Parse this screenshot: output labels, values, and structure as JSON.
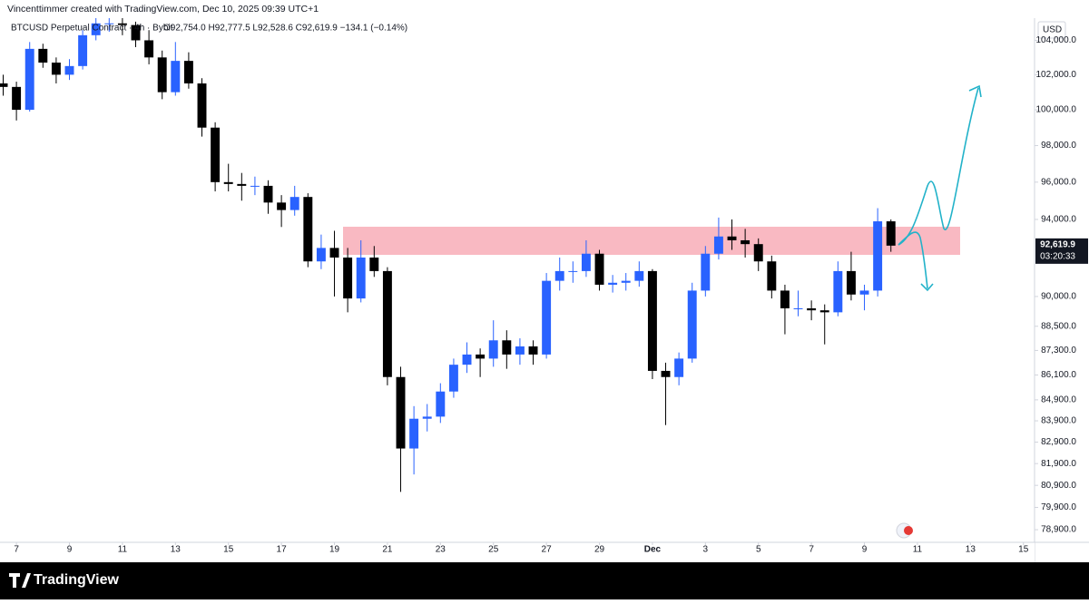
{
  "chart_data": {
    "type": "candlestick",
    "title": "Vincenttimmer created with TradingView.com, Dec 10, 2025 09:39 UTC+1",
    "symbol": "BTCUSD Perpetual Contract · 4h · Bybit",
    "ohlc_text": "O92,754.0 H92,777.5 L92,528.6 C92,619.9 −134.1 (−0.14%)",
    "currency": "USD",
    "last_price": {
      "value": 92619.9,
      "label": "92,619.9"
    },
    "countdown": "03:20:33",
    "brand": "TradingView",
    "log_scale": true,
    "grid": false,
    "up_color": "#2962ff",
    "down_color": "#000000",
    "xlim": [
      0.38,
      39.42
    ],
    "ylim": [
      78340,
      105310
    ],
    "xticks": [
      {
        "value": 1,
        "label": "7"
      },
      {
        "value": 3,
        "label": "9"
      },
      {
        "value": 5,
        "label": "11"
      },
      {
        "value": 7,
        "label": "13"
      },
      {
        "value": 9,
        "label": "15"
      },
      {
        "value": 11,
        "label": "17"
      },
      {
        "value": 13,
        "label": "19"
      },
      {
        "value": 15,
        "label": "21"
      },
      {
        "value": 17,
        "label": "23"
      },
      {
        "value": 19,
        "label": "25"
      },
      {
        "value": 21,
        "label": "27"
      },
      {
        "value": 23,
        "label": "29"
      },
      {
        "value": 25,
        "label": "Dec"
      },
      {
        "value": 27,
        "label": "3"
      },
      {
        "value": 29,
        "label": "5"
      },
      {
        "value": 31,
        "label": "7"
      },
      {
        "value": 33,
        "label": "9"
      },
      {
        "value": 35,
        "label": "11"
      },
      {
        "value": 37,
        "label": "13"
      },
      {
        "value": 39,
        "label": "15"
      }
    ],
    "yticks": [
      {
        "value": 104000,
        "label": "104,000.0"
      },
      {
        "value": 102000,
        "label": "102,000.0"
      },
      {
        "value": 100000,
        "label": "100,000.0"
      },
      {
        "value": 98000,
        "label": "98,000.0"
      },
      {
        "value": 96000,
        "label": "96,000.0"
      },
      {
        "value": 94000,
        "label": "94,000.0"
      },
      {
        "value": 90000,
        "label": "90,000.0"
      },
      {
        "value": 88500,
        "label": "88,500.0"
      },
      {
        "value": 87300,
        "label": "87,300.0"
      },
      {
        "value": 86100,
        "label": "86,100.0"
      },
      {
        "value": 84900,
        "label": "84,900.0"
      },
      {
        "value": 83900,
        "label": "83,900.0"
      },
      {
        "value": 82900,
        "label": "82,900.0"
      },
      {
        "value": 81900,
        "label": "81,900.0"
      },
      {
        "value": 80900,
        "label": "80,900.0"
      },
      {
        "value": 79900,
        "label": "79,900.0"
      },
      {
        "value": 78900,
        "label": "78,900.0"
      }
    ],
    "x": [
      0.5,
      1,
      1.5,
      2,
      2.5,
      3,
      3.5,
      4,
      4.5,
      5,
      5.5,
      6,
      6.5,
      7,
      7.5,
      8,
      8.5,
      9,
      9.5,
      10,
      10.5,
      11,
      11.5,
      12,
      12.5,
      13,
      13.5,
      14,
      14.5,
      15,
      15.5,
      16,
      16.5,
      17,
      17.5,
      18,
      18.5,
      19,
      19.5,
      20,
      20.5,
      21,
      21.5,
      22,
      22.5,
      23,
      23.5,
      24,
      24.5,
      25,
      25.5,
      26,
      26.5,
      27,
      27.5,
      28,
      28.5,
      29,
      29.5,
      30,
      30.5,
      31,
      31.5,
      32,
      32.5,
      33,
      33.5,
      34
    ],
    "open": [
      101500,
      101300,
      100000,
      103500,
      102700,
      102000,
      102500,
      104300,
      105000,
      105000,
      104900,
      104000,
      103000,
      101000,
      102800,
      101500,
      99000,
      96000,
      95900,
      95800,
      95800,
      94900,
      94500,
      95200,
      91800,
      92500,
      92000,
      89900,
      92000,
      91300,
      86000,
      82600,
      84000,
      84100,
      85300,
      86600,
      87100,
      86900,
      87800,
      87100,
      87500,
      87100,
      90800,
      91300,
      91300,
      92200,
      90600,
      90700,
      90800,
      91300,
      86300,
      86000,
      86900,
      90300,
      92200,
      93100,
      92900,
      92700,
      91800,
      90300,
      89400,
      89400,
      89300,
      89200,
      91300,
      90100,
      90300,
      93900
    ],
    "high": [
      102000,
      101600,
      103900,
      103800,
      103000,
      102900,
      104600,
      105500,
      105700,
      105400,
      105100,
      104600,
      103400,
      103900,
      103300,
      101800,
      99300,
      97000,
      96500,
      96300,
      96100,
      95300,
      95800,
      95400,
      93200,
      93400,
      92500,
      92900,
      92600,
      91500,
      86500,
      84600,
      84700,
      85700,
      86900,
      87700,
      87400,
      88800,
      88300,
      87900,
      87800,
      91200,
      92000,
      91800,
      92900,
      92400,
      91100,
      91200,
      91800,
      91400,
      86700,
      87200,
      90700,
      92600,
      94100,
      94000,
      93500,
      93000,
      92100,
      90600,
      90300,
      89800,
      89600,
      91800,
      92300,
      90600,
      94600,
      94000
    ],
    "low": [
      100800,
      99400,
      99900,
      102400,
      101500,
      101700,
      102300,
      104000,
      104500,
      104300,
      103600,
      102600,
      100600,
      100800,
      101200,
      98500,
      95500,
      95500,
      95000,
      95300,
      94300,
      93600,
      94200,
      91500,
      91400,
      90000,
      89200,
      89700,
      91000,
      85600,
      80600,
      81400,
      83400,
      83800,
      85000,
      86200,
      86000,
      86500,
      86400,
      86600,
      86600,
      86900,
      90300,
      90700,
      91000,
      90300,
      90200,
      90300,
      90500,
      85900,
      83700,
      85600,
      86700,
      90000,
      91900,
      92400,
      92000,
      91300,
      89900,
      88100,
      89000,
      88800,
      87600,
      89000,
      89800,
      89300,
      90000,
      92300
    ],
    "close": [
      101300,
      100000,
      103500,
      102700,
      102000,
      102500,
      104300,
      105000,
      105000,
      104900,
      104000,
      103000,
      101000,
      102800,
      101500,
      99000,
      96000,
      95900,
      95800,
      95800,
      94900,
      94500,
      95200,
      91800,
      92500,
      92000,
      89900,
      92000,
      91300,
      86000,
      82600,
      84000,
      84100,
      85300,
      86600,
      87100,
      86900,
      87800,
      87100,
      87500,
      87100,
      90800,
      91300,
      91300,
      92200,
      90600,
      90700,
      90800,
      91300,
      86300,
      86000,
      86900,
      90300,
      92200,
      93100,
      92900,
      92700,
      91800,
      90300,
      89400,
      89400,
      89300,
      89200,
      91300,
      90100,
      90300,
      93900,
      92619.9
    ]
  }
}
